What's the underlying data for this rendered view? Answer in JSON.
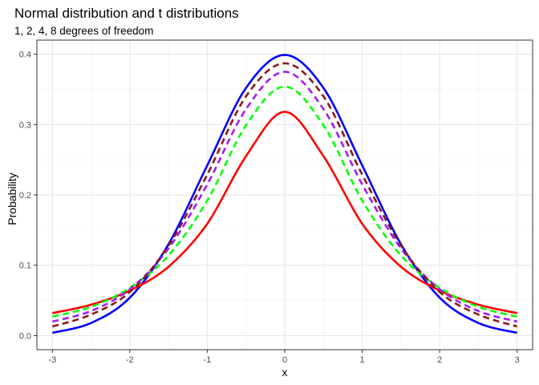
{
  "chart_data": {
    "type": "line",
    "title": "Normal distribution and t distributions",
    "subtitle": "1, 2, 4, 8 degrees of freedom",
    "xlabel": "x",
    "ylabel": "Probability",
    "xlim": [
      -3.2,
      3.2
    ],
    "ylim": [
      -0.02,
      0.42
    ],
    "x_ticks": [
      -3,
      -2,
      -1,
      0,
      1,
      2,
      3
    ],
    "x_tick_labels": [
      "-3",
      "-2",
      "-1",
      "0",
      "1",
      "2",
      "3"
    ],
    "y_ticks": [
      0.0,
      0.1,
      0.2,
      0.3,
      0.4
    ],
    "y_tick_labels": [
      "0.0",
      "0.1",
      "0.2",
      "0.3",
      "0.4"
    ],
    "grid": true,
    "legend": "none",
    "x": [
      -3,
      -2.5,
      -2,
      -1.5,
      -1,
      -0.5,
      0,
      0.5,
      1,
      1.5,
      2,
      2.5,
      3
    ],
    "series": [
      {
        "color": "#0000FF",
        "dash": "solid",
        "values": [
          0.004,
          0.018,
          0.054,
          0.13,
          0.242,
          0.352,
          0.399,
          0.352,
          0.242,
          0.13,
          0.054,
          0.018,
          0.004
        ]
      },
      {
        "color": "#FF0000",
        "dash": "solid",
        "values": [
          0.032,
          0.044,
          0.064,
          0.098,
          0.159,
          0.255,
          0.318,
          0.255,
          0.159,
          0.098,
          0.064,
          0.044,
          0.032
        ]
      },
      {
        "color": "#00FF00",
        "dash": "dashed",
        "values": [
          0.027,
          0.041,
          0.068,
          0.114,
          0.192,
          0.299,
          0.354,
          0.299,
          0.192,
          0.114,
          0.068,
          0.041,
          0.027
        ]
      },
      {
        "color": "#A020F0",
        "dash": "dashed",
        "values": [
          0.02,
          0.035,
          0.066,
          0.124,
          0.215,
          0.322,
          0.375,
          0.322,
          0.215,
          0.124,
          0.066,
          0.035,
          0.02
        ]
      },
      {
        "color": "#8B1A1A",
        "dash": "dashed",
        "values": [
          0.013,
          0.03,
          0.062,
          0.128,
          0.229,
          0.34,
          0.387,
          0.34,
          0.229,
          0.128,
          0.062,
          0.03,
          0.013
        ]
      }
    ]
  }
}
